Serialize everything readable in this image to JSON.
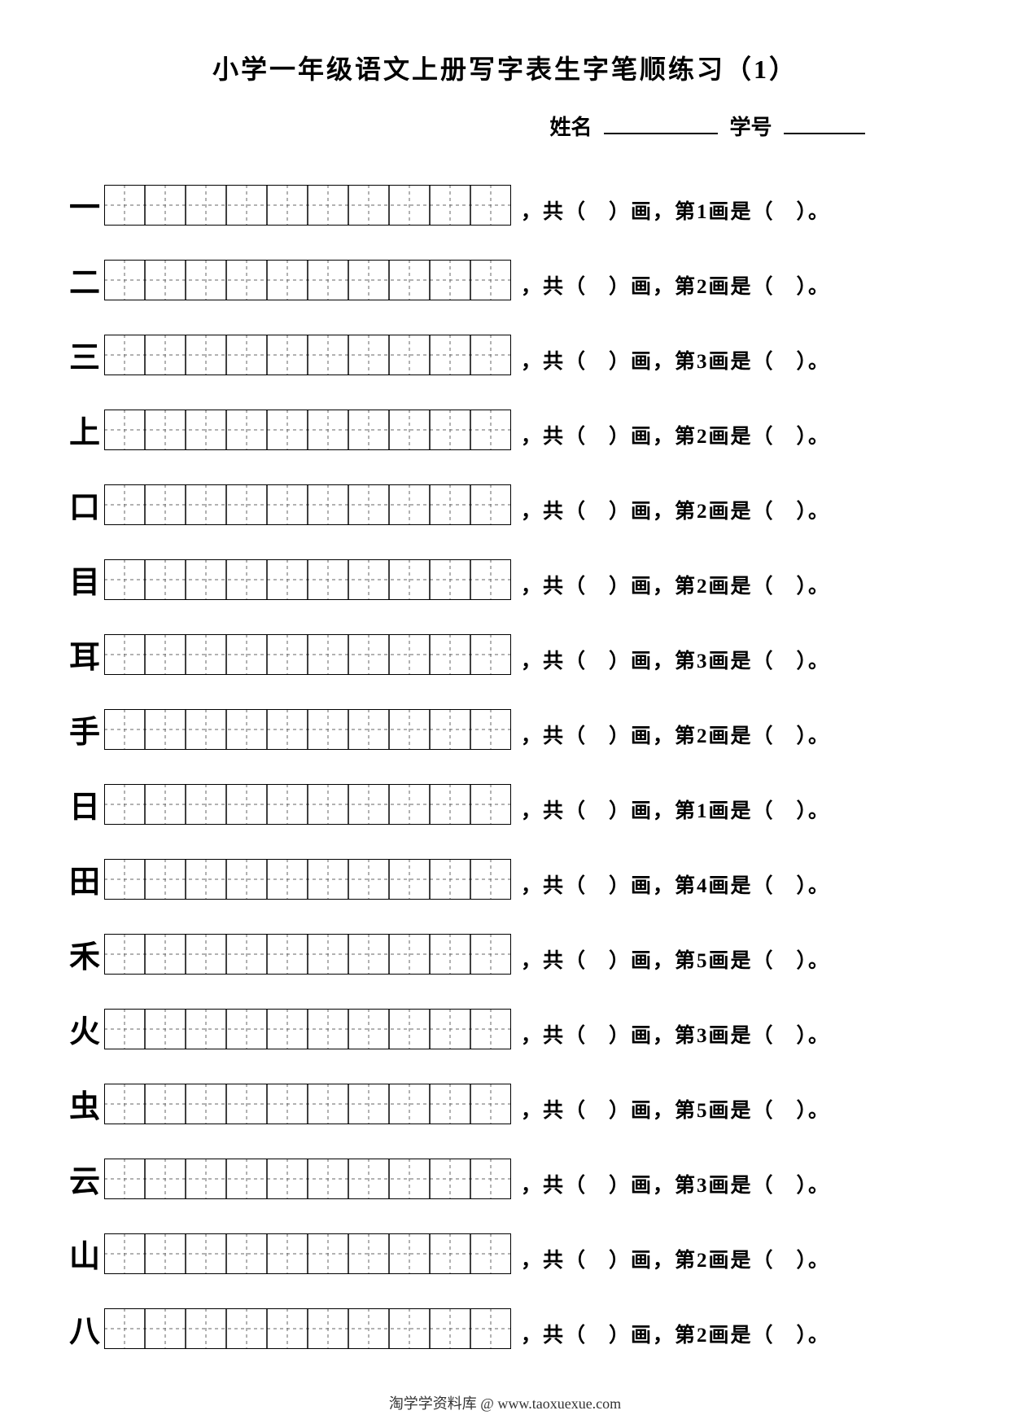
{
  "title": "小学一年级语文上册写字表生字笔顺练习（1）",
  "header": {
    "name_label": "姓名",
    "id_label": "学号"
  },
  "grid": {
    "cells": 10,
    "cell_size": 50,
    "border_color": "#000000",
    "guide_color": "#666666",
    "dash": "4,4"
  },
  "question_template": {
    "prefix": "，共（　）画，第",
    "suffix": "画是（　）。"
  },
  "rows": [
    {
      "char": "一",
      "stroke_num": "1"
    },
    {
      "char": "二",
      "stroke_num": "2"
    },
    {
      "char": "三",
      "stroke_num": "3"
    },
    {
      "char": "上",
      "stroke_num": "2"
    },
    {
      "char": "口",
      "stroke_num": "2"
    },
    {
      "char": "目",
      "stroke_num": "2"
    },
    {
      "char": "耳",
      "stroke_num": "3"
    },
    {
      "char": "手",
      "stroke_num": "2"
    },
    {
      "char": "日",
      "stroke_num": "1"
    },
    {
      "char": "田",
      "stroke_num": "4"
    },
    {
      "char": "禾",
      "stroke_num": "5"
    },
    {
      "char": "火",
      "stroke_num": "3"
    },
    {
      "char": "虫",
      "stroke_num": "5"
    },
    {
      "char": "云",
      "stroke_num": "3"
    },
    {
      "char": "山",
      "stroke_num": "2"
    },
    {
      "char": "八",
      "stroke_num": "2"
    }
  ],
  "footer": "淘学学资料库 @ www.taoxuexue.com"
}
